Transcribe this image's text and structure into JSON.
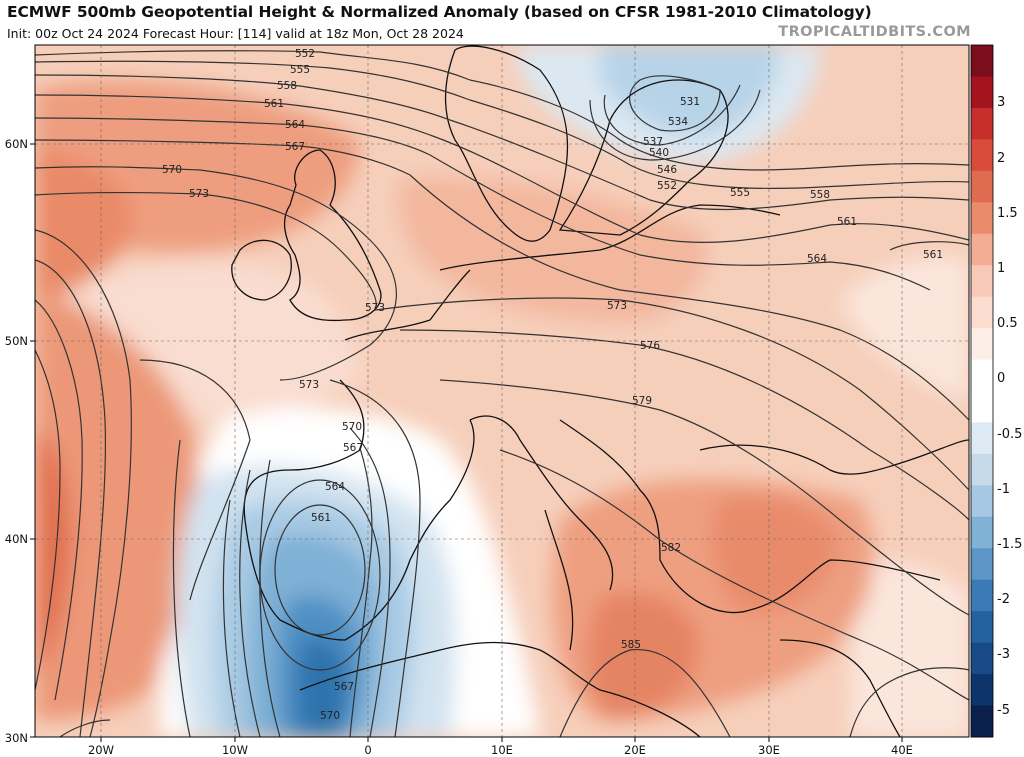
{
  "header": {
    "title": "ECMWF 500mb Geopotential Height & Normalized Anomaly (based on CFSR 1981-2010 Climatology)",
    "subtitle": "Init: 00z Oct 24 2024   Forecast Hour: [114]   valid at 18z Mon, Oct 28 2024",
    "credit": "TROPICALTIDBITS.COM"
  },
  "map": {
    "lat_labels": [
      "60N",
      "50N",
      "40N",
      "30N"
    ],
    "lon_labels": [
      "20W",
      "10W",
      "0",
      "10E",
      "20E",
      "30E",
      "40E"
    ],
    "contour_labels": [
      "552",
      "555",
      "558",
      "561",
      "564",
      "567",
      "570",
      "573",
      "573",
      "573",
      "570",
      "567",
      "564",
      "561",
      "531",
      "534",
      "537",
      "540",
      "546",
      "552",
      "555",
      "558",
      "561",
      "564",
      "561",
      "573",
      "576",
      "579",
      "582",
      "585",
      "567",
      "570"
    ],
    "colors": {
      "positive_strong": "#e07a56",
      "positive_weak": "#fbe3d6",
      "negative_strong": "#2f73ad",
      "negative_weak": "#c9dfee"
    }
  },
  "colorbar": {
    "labels": [
      "3",
      "2",
      "1.5",
      "1",
      "0.5",
      "0",
      "-0.5",
      "-1",
      "-1.5",
      "-2",
      "-3",
      "-5"
    ],
    "colors": [
      "#7a0e1b",
      "#a3141f",
      "#c72f2d",
      "#d94b3a",
      "#e06c4f",
      "#ea8b6c",
      "#f3ad92",
      "#f8c9b6",
      "#fbdccf",
      "#fdeee7",
      "#ffffff",
      "#ffffff",
      "#dde9f3",
      "#c5dbec",
      "#a7c8e2",
      "#82b1d6",
      "#5b96c7",
      "#3b7ab5",
      "#25609f",
      "#184a87",
      "#0d346b",
      "#0a1f4c"
    ]
  }
}
